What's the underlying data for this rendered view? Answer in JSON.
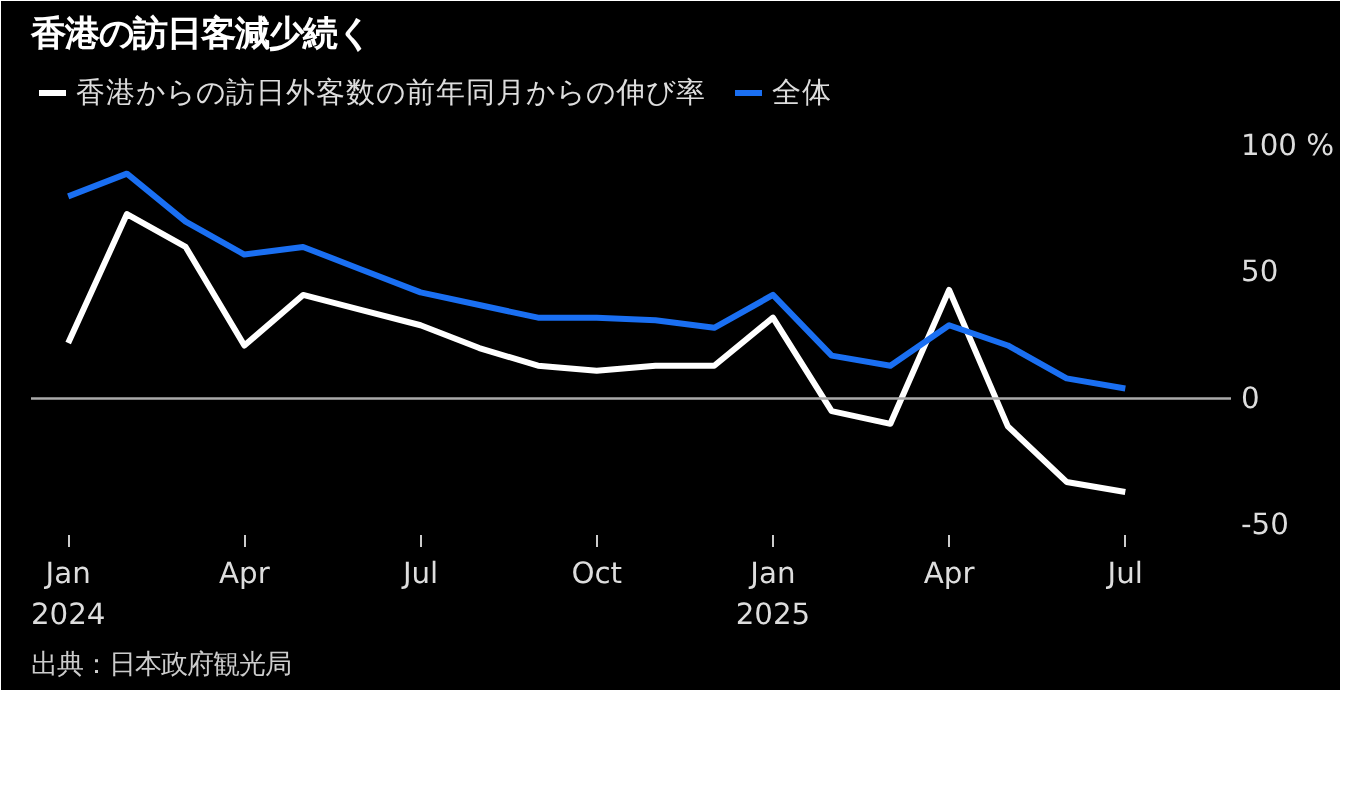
{
  "chart_data": {
    "type": "line",
    "title": "香港の訪日客減少続く",
    "x": [
      "2024-01",
      "2024-02",
      "2024-03",
      "2024-04",
      "2024-05",
      "2024-06",
      "2024-07",
      "2024-08",
      "2024-09",
      "2024-10",
      "2024-11",
      "2024-12",
      "2025-01",
      "2025-02",
      "2025-03",
      "2025-04",
      "2025-05",
      "2025-06",
      "2025-07"
    ],
    "series": [
      {
        "name": "香港からの訪日外客数の前年同月からの伸び率",
        "color": "#ffffff",
        "values": [
          22,
          73,
          60,
          21,
          41,
          35,
          29,
          20,
          13,
          11,
          13,
          13,
          32,
          -5,
          -10,
          43,
          -11,
          -33,
          -37
        ]
      },
      {
        "name": "全体",
        "color": "#1a6ff2",
        "values": [
          80,
          89,
          70,
          57,
          60,
          51,
          42,
          37,
          32,
          32,
          31,
          28,
          41,
          17,
          13,
          29,
          21,
          8,
          4
        ]
      }
    ],
    "xlim": [
      "2023-12-12",
      "2025-08-25"
    ],
    "xticks": [
      {
        "value": "2024-01",
        "label": "Jan\n2024"
      },
      {
        "value": "2024-04",
        "label": "Apr"
      },
      {
        "value": "2024-07",
        "label": "Jul"
      },
      {
        "value": "2024-10",
        "label": "Oct"
      },
      {
        "value": "2025-01",
        "label": "Jan\n2025"
      },
      {
        "value": "2025-04",
        "label": "Apr"
      },
      {
        "value": "2025-07",
        "label": "Jul"
      }
    ],
    "ylim": [
      -54,
      132
    ],
    "yticks": [
      -50,
      0,
      50,
      {
        "value": 100,
        "label": "100 %"
      }
    ],
    "ref_lines": [
      {
        "axis": "y",
        "value": 0,
        "color": "#aaaaaa"
      }
    ],
    "grid": false,
    "legend": "top left",
    "line_style": "solid",
    "annotations": [
      "出典：日本政府観光局"
    ]
  }
}
